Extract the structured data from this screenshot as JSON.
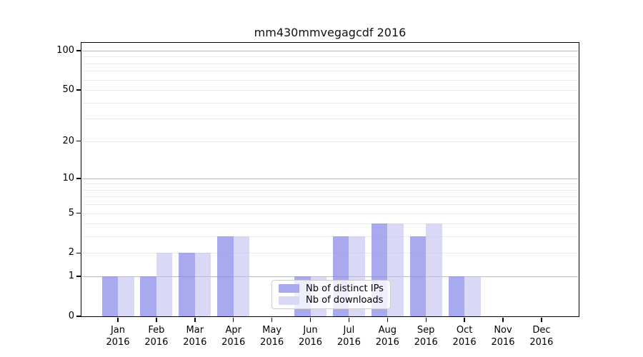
{
  "title": "mm430mmvegagcdf 2016",
  "chart_data": {
    "type": "bar",
    "title": "mm430mmvegagcdf 2016",
    "scale": "log10(1+y)",
    "year": "2016",
    "categories": [
      "Jan",
      "Feb",
      "Mar",
      "Apr",
      "May",
      "Jun",
      "Jul",
      "Aug",
      "Sep",
      "Oct",
      "Nov",
      "Dec"
    ],
    "series": [
      {
        "name": "Nb of distinct IPs",
        "color": "#a9a9f0",
        "fill": "rgba(140,140,235,0.75)",
        "values": [
          1,
          1,
          2,
          3,
          0,
          1,
          3,
          4,
          3,
          1,
          0,
          0
        ]
      },
      {
        "name": "Nb of downloads",
        "color": "#d9d9f6",
        "fill": "rgba(190,190,240,0.59)",
        "values": [
          1,
          2,
          2,
          3,
          0,
          1,
          3,
          4,
          4,
          1,
          0,
          0
        ]
      }
    ],
    "y_ticks": [
      0,
      1,
      2,
      5,
      10,
      20,
      50,
      100
    ],
    "y_gridlines_major": [
      1,
      10,
      100
    ],
    "y_gridlines_minor": [
      2,
      3,
      4,
      5,
      6,
      7,
      8,
      9,
      20,
      30,
      40,
      50,
      60,
      70,
      80,
      90
    ],
    "ylim": [
      0,
      115
    ],
    "grid": "on",
    "legend_position": "lower center",
    "colors": {
      "spine": "#000000",
      "grid_major": "#b9b9b9",
      "grid_minor": "#ececec",
      "background": "#ffffff"
    }
  },
  "legend": {
    "entries": [
      "Nb of distinct IPs",
      "Nb of downloads"
    ]
  }
}
